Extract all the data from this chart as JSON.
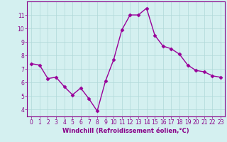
{
  "x": [
    0,
    1,
    2,
    3,
    4,
    5,
    6,
    7,
    8,
    9,
    10,
    11,
    12,
    13,
    14,
    15,
    16,
    17,
    18,
    19,
    20,
    21,
    22,
    23
  ],
  "y": [
    7.4,
    7.3,
    6.3,
    6.4,
    5.7,
    5.1,
    5.6,
    4.8,
    3.9,
    6.1,
    7.7,
    9.9,
    11.0,
    11.0,
    11.5,
    9.5,
    8.7,
    8.5,
    8.1,
    7.3,
    6.9,
    6.8,
    6.5,
    6.4
  ],
  "line_color": "#990099",
  "marker": "D",
  "marker_size": 2.5,
  "bg_color": "#d4f0f0",
  "grid_color": "#b0d8d8",
  "xlabel": "Windchill (Refroidissement éolien,°C)",
  "xlabel_color": "#880088",
  "ylim": [
    3.5,
    12.0
  ],
  "xlim": [
    -0.5,
    23.5
  ],
  "yticks": [
    4,
    5,
    6,
    7,
    8,
    9,
    10,
    11
  ],
  "xticks": [
    0,
    1,
    2,
    3,
    4,
    5,
    6,
    7,
    8,
    9,
    10,
    11,
    12,
    13,
    14,
    15,
    16,
    17,
    18,
    19,
    20,
    21,
    22,
    23
  ],
  "tick_color": "#880088",
  "tick_fontsize": 5.5,
  "xlabel_fontsize": 6.0,
  "spine_color": "#880088",
  "line_width": 1.0
}
